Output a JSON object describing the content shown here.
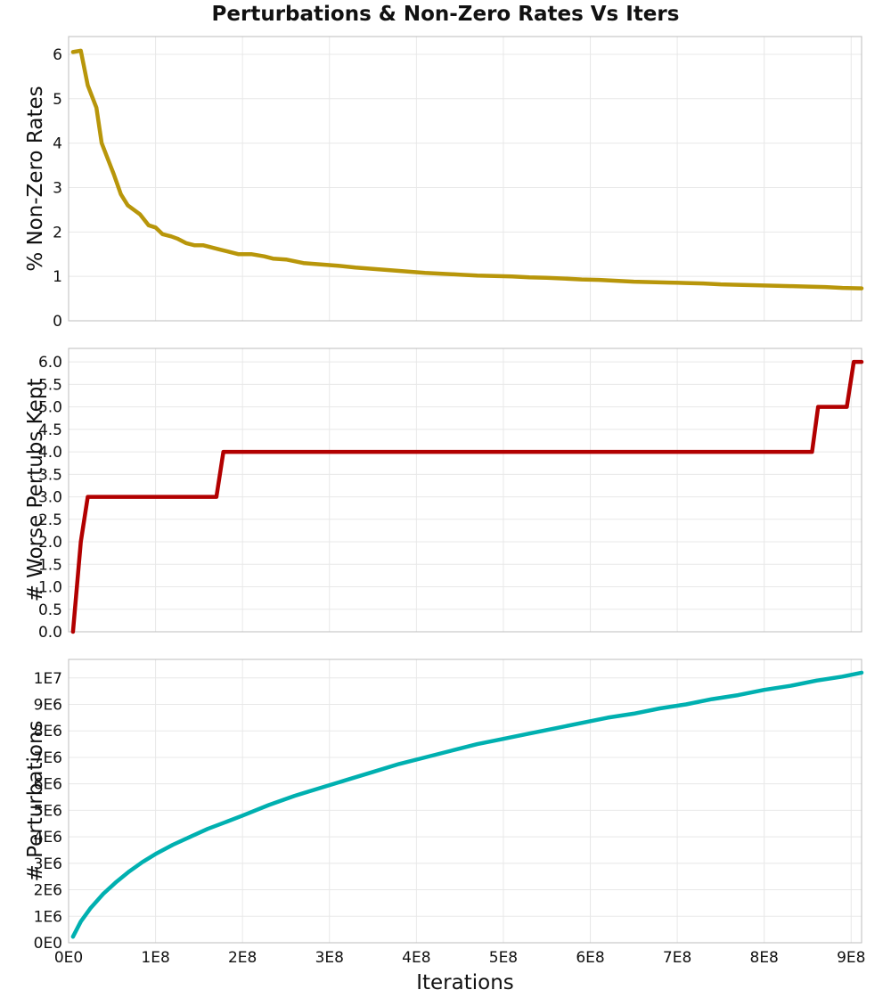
{
  "title": "Perturbations & Non-Zero Rates Vs Iters",
  "chart_data": [
    {
      "type": "line",
      "ylabel": "% Non-Zero Rates",
      "xlabel": "",
      "xlim": [
        0,
        912000000
      ],
      "ylim": [
        0,
        6.4
      ],
      "yticks": [
        0,
        1,
        2,
        3,
        4,
        5,
        6
      ],
      "ytick_labels": [
        "0",
        "1",
        "2",
        "3",
        "4",
        "5",
        "6"
      ],
      "show_xtick_labels": false,
      "grid": true,
      "color": "#b8960a",
      "series": [
        {
          "x": [
            5000000,
            14000000,
            22000000,
            32000000,
            38000000,
            45000000,
            52000000,
            60000000,
            68000000,
            75000000,
            82000000,
            92000000,
            100000000,
            108000000,
            118000000,
            125000000,
            135000000,
            145000000,
            155000000,
            165000000,
            175000000,
            185000000,
            195000000,
            210000000,
            225000000,
            235000000,
            250000000,
            270000000,
            290000000,
            310000000,
            330000000,
            350000000,
            370000000,
            390000000,
            410000000,
            430000000,
            450000000,
            470000000,
            490000000,
            510000000,
            530000000,
            550000000,
            570000000,
            590000000,
            610000000,
            630000000,
            650000000,
            670000000,
            690000000,
            710000000,
            730000000,
            750000000,
            770000000,
            790000000,
            810000000,
            830000000,
            850000000,
            870000000,
            890000000,
            912000000
          ],
          "y": [
            6.05,
            6.08,
            5.3,
            4.8,
            4.0,
            3.65,
            3.3,
            2.85,
            2.6,
            2.5,
            2.4,
            2.15,
            2.1,
            1.95,
            1.9,
            1.85,
            1.75,
            1.7,
            1.7,
            1.65,
            1.6,
            1.55,
            1.5,
            1.5,
            1.45,
            1.4,
            1.38,
            1.3,
            1.27,
            1.24,
            1.2,
            1.17,
            1.14,
            1.11,
            1.08,
            1.06,
            1.04,
            1.02,
            1.01,
            1.0,
            0.98,
            0.97,
            0.95,
            0.93,
            0.92,
            0.9,
            0.88,
            0.87,
            0.86,
            0.85,
            0.84,
            0.82,
            0.81,
            0.8,
            0.79,
            0.78,
            0.77,
            0.76,
            0.74,
            0.73
          ]
        }
      ]
    },
    {
      "type": "line",
      "ylabel": "# Worse Pertubs Kept",
      "xlabel": "",
      "xlim": [
        0,
        912000000
      ],
      "ylim": [
        0,
        6.3
      ],
      "yticks": [
        0,
        0.5,
        1,
        1.5,
        2,
        2.5,
        3,
        3.5,
        4,
        4.5,
        5,
        5.5,
        6
      ],
      "ytick_labels": [
        "0.0",
        "0.5",
        "1.0",
        "1.5",
        "2.0",
        "2.5",
        "3.0",
        "3.5",
        "4.0",
        "4.5",
        "5.0",
        "5.5",
        "6.0"
      ],
      "show_xtick_labels": false,
      "grid": true,
      "color": "#b20000",
      "series": [
        {
          "x": [
            5000000,
            14000000,
            22000000,
            170000000,
            178000000,
            855000000,
            862000000,
            895000000,
            903000000,
            912000000
          ],
          "y": [
            0,
            2,
            3,
            3,
            4,
            4,
            5,
            5,
            6,
            6
          ]
        }
      ]
    },
    {
      "type": "line",
      "ylabel": "# Perturbations",
      "xlabel": "Iterations",
      "xlim": [
        0,
        912000000
      ],
      "ylim": [
        0,
        10700000
      ],
      "yticks": [
        0,
        1000000,
        2000000,
        3000000,
        4000000,
        5000000,
        6000000,
        7000000,
        8000000,
        9000000,
        10000000
      ],
      "ytick_labels": [
        "0E0",
        "1E6",
        "2E6",
        "3E6",
        "4E6",
        "5E6",
        "6E6",
        "7E6",
        "8E6",
        "9E6",
        "1E7"
      ],
      "xticks": [
        0,
        100000000,
        200000000,
        300000000,
        400000000,
        500000000,
        600000000,
        700000000,
        800000000,
        900000000
      ],
      "xtick_labels": [
        "0E0",
        "1E8",
        "2E8",
        "3E8",
        "4E8",
        "5E8",
        "6E8",
        "7E8",
        "8E8",
        "9E8"
      ],
      "show_xtick_labels": true,
      "grid": true,
      "color": "#00b0b0",
      "series": [
        {
          "x": [
            5000000,
            14000000,
            25000000,
            40000000,
            55000000,
            70000000,
            85000000,
            100000000,
            120000000,
            140000000,
            160000000,
            180000000,
            200000000,
            230000000,
            260000000,
            290000000,
            320000000,
            350000000,
            380000000,
            410000000,
            440000000,
            470000000,
            500000000,
            530000000,
            560000000,
            590000000,
            620000000,
            650000000,
            680000000,
            710000000,
            740000000,
            770000000,
            800000000,
            830000000,
            860000000,
            890000000,
            912000000
          ],
          "y": [
            230000,
            800000,
            1300000,
            1850000,
            2300000,
            2700000,
            3050000,
            3350000,
            3700000,
            4000000,
            4300000,
            4550000,
            4800000,
            5200000,
            5550000,
            5850000,
            6150000,
            6450000,
            6750000,
            7000000,
            7250000,
            7500000,
            7700000,
            7900000,
            8100000,
            8300000,
            8500000,
            8650000,
            8850000,
            9000000,
            9200000,
            9350000,
            9550000,
            9700000,
            9900000,
            10050000,
            10200000
          ]
        }
      ]
    }
  ]
}
